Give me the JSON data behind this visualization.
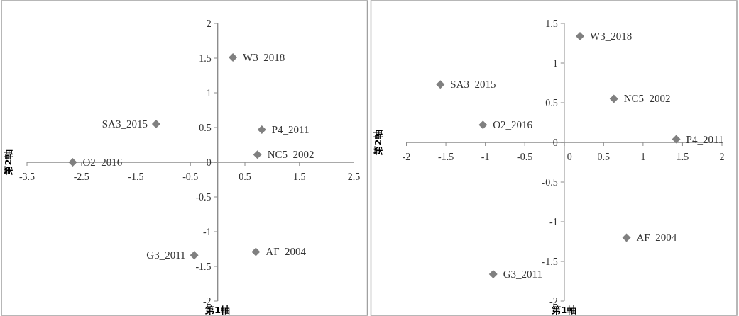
{
  "chart_data": [
    {
      "type": "scatter",
      "xlabel": "第1軸",
      "ylabel": "第2軸",
      "xlim": [
        -3.5,
        2.5
      ],
      "xticks": [
        -3.5,
        -2.5,
        -1.5,
        -0.5,
        0.5,
        1.5,
        2.5
      ],
      "ylim": [
        -2,
        2
      ],
      "yticks": [
        -2,
        -1.5,
        -1,
        -0.5,
        0,
        0.5,
        1,
        1.5,
        2
      ],
      "marker": "diamond",
      "series": [
        {
          "name": "W3_2018",
          "color": "#808080",
          "x": [
            0.28
          ],
          "values": [
            1.51
          ]
        },
        {
          "name": "SA3_2015",
          "color": "#808080",
          "x": [
            -1.13
          ],
          "values": [
            0.55
          ]
        },
        {
          "name": "P4_2011",
          "color": "#808080",
          "x": [
            0.81
          ],
          "values": [
            0.47
          ]
        },
        {
          "name": "NC5_2002",
          "color": "#808080",
          "x": [
            0.73
          ],
          "values": [
            0.11
          ]
        },
        {
          "name": "O2_2016",
          "color": "#808080",
          "x": [
            -2.66
          ],
          "values": [
            0.0
          ]
        },
        {
          "name": "G3_2011",
          "color": "#808080",
          "x": [
            -0.43
          ],
          "values": [
            -1.34
          ]
        },
        {
          "name": "AF_2004",
          "color": "#808080",
          "x": [
            0.7
          ],
          "values": [
            -1.29
          ]
        }
      ]
    },
    {
      "type": "scatter",
      "xlabel": "第1軸",
      "ylabel": "第2軸",
      "xlim": [
        -2,
        2
      ],
      "xticks": [
        -2,
        -1.5,
        -1,
        -0.5,
        0,
        0.5,
        1,
        1.5,
        2
      ],
      "ylim": [
        -2,
        1.5
      ],
      "yticks": [
        -2,
        -1.5,
        -1,
        -0.5,
        0,
        0.5,
        1,
        1.5
      ],
      "marker": "diamond",
      "series": [
        {
          "name": "W3_2018",
          "color": "#808080",
          "x": [
            0.2
          ],
          "values": [
            1.34
          ]
        },
        {
          "name": "SA3_2015",
          "color": "#808080",
          "x": [
            -1.57
          ],
          "values": [
            0.73
          ]
        },
        {
          "name": "NC5_2002",
          "color": "#808080",
          "x": [
            0.63
          ],
          "values": [
            0.55
          ]
        },
        {
          "name": "O2_2016",
          "color": "#808080",
          "x": [
            -1.03
          ],
          "values": [
            0.22
          ]
        },
        {
          "name": "P4_2011",
          "color": "#808080",
          "x": [
            1.42
          ],
          "values": [
            0.04
          ]
        },
        {
          "name": "AF_2004",
          "color": "#808080",
          "x": [
            0.79
          ],
          "values": [
            -1.2
          ]
        },
        {
          "name": "G3_2011",
          "color": "#808080",
          "x": [
            -0.9
          ],
          "values": [
            -1.66
          ]
        }
      ]
    }
  ]
}
